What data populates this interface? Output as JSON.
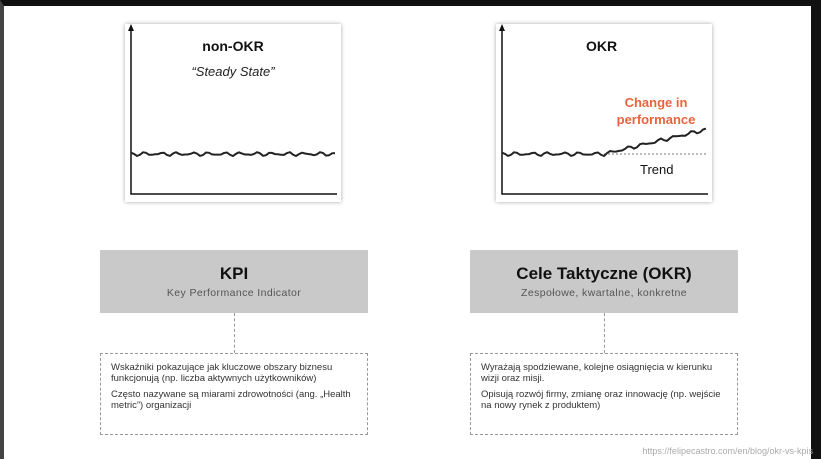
{
  "left": {
    "chart": {
      "title": "non-OKR",
      "subtitle": "“Steady State”"
    },
    "box": {
      "title": "KPI",
      "subtitle": "Key Performance Indicator"
    },
    "description": [
      "Wskaźniki pokazujące jak kluczowe obszary biznesu funkcjonują (np. liczba aktywnych użytkowników)",
      "Często nazywane są miarami zdrowotności (ang. „Health metric”) organizacji"
    ]
  },
  "right": {
    "chart": {
      "title": "OKR",
      "annotation": "Change in performance",
      "trend_label": "Trend"
    },
    "box": {
      "title": "Cele Taktyczne (OKR)",
      "subtitle": "Zespołowe, kwartalne, konkretne"
    },
    "description": [
      "Wyrażają spodziewane, kolejne osiągnięcia w kierunku wizji oraz misji.",
      "Opisują rozwój firmy, zmianę oraz innowację (np. wejście na nowy rynek z produktem)"
    ]
  },
  "source": "https://felipecastro.com/en/blog/okr-vs-kpis"
}
